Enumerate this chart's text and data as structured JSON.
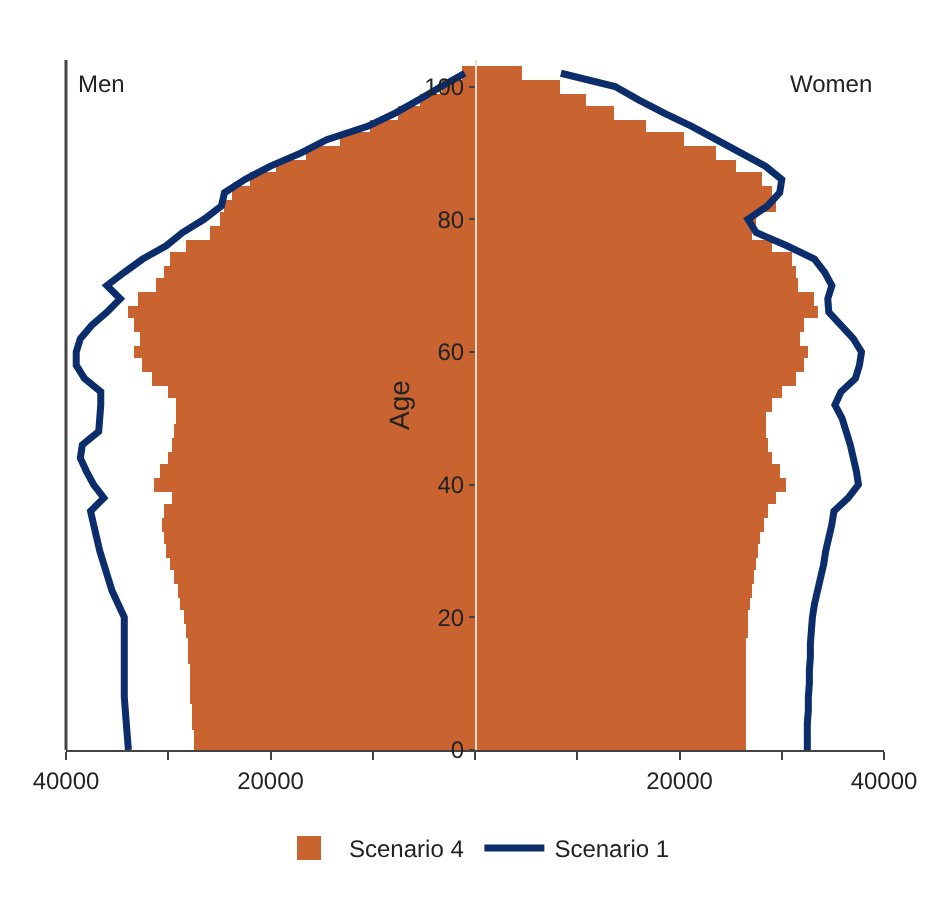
{
  "chart_data": {
    "type": "bar",
    "orientation": "horizontal",
    "stacked": true,
    "ylabel": "Age",
    "annotations": [
      "Men",
      "Women"
    ],
    "legend": "bottom",
    "x": [
      0,
      2,
      4,
      6,
      8,
      10,
      12,
      14,
      16,
      18,
      20,
      22,
      24,
      26,
      28,
      30,
      32,
      34,
      36,
      38,
      40,
      42,
      44,
      46,
      48,
      50,
      52,
      54,
      56,
      58,
      60,
      62,
      64,
      66,
      68,
      70,
      72,
      74,
      76,
      78,
      80,
      82,
      84,
      86,
      88,
      90,
      92,
      94,
      96,
      98,
      100,
      102
    ],
    "xlim": [
      -40000,
      40000
    ],
    "xticks": [
      {
        "value": -40000,
        "label": "40000"
      },
      {
        "value": -30000,
        "label": null
      },
      {
        "value": -20000,
        "label": "20000"
      },
      {
        "value": -10000,
        "label": null
      },
      {
        "value": 0,
        "label": null
      },
      {
        "value": 10000,
        "label": null
      },
      {
        "value": 20000,
        "label": "20000"
      },
      {
        "value": 30000,
        "label": null
      },
      {
        "value": 40000,
        "label": "40000"
      }
    ],
    "ylim": [
      0,
      104
    ],
    "yticks": [
      0,
      20,
      40,
      60,
      80,
      100
    ],
    "series": [
      {
        "name": "Scenario 4",
        "color": "#c96431",
        "values": [
          -27500,
          -27500,
          -27600,
          -27700,
          -27800,
          -27800,
          -27900,
          -28000,
          -28100,
          -28300,
          -28400,
          -28800,
          -29100,
          -29500,
          -29800,
          -30200,
          -30400,
          -30700,
          -30500,
          -29600,
          -31400,
          -30800,
          -30100,
          -29700,
          -29400,
          -29200,
          -29300,
          -30000,
          -31500,
          -32600,
          -33300,
          -32700,
          -33300,
          -33900,
          -33000,
          -31200,
          -30500,
          -29800,
          -28200,
          -26000,
          -24900,
          -24600,
          -23800,
          -22000,
          -19400,
          -16500,
          -13300,
          -10200,
          -7500,
          -5400,
          -3300,
          -1200
        ]
      },
      {
        "color": "#c96431",
        "values": [
          26500,
          26500,
          26500,
          26500,
          26500,
          26500,
          26600,
          26600,
          26600,
          26700,
          26700,
          26900,
          27100,
          27300,
          27500,
          27600,
          27900,
          28300,
          28600,
          29500,
          30400,
          29800,
          29100,
          28600,
          28400,
          28400,
          29000,
          30000,
          31400,
          32200,
          32500,
          31800,
          32200,
          33500,
          33200,
          31600,
          31400,
          31000,
          29000,
          27000,
          27400,
          29400,
          29000,
          28000,
          25500,
          23500,
          20500,
          16800,
          13600,
          10800,
          8400,
          4500
        ]
      },
      {
        "name": "Scenario 1",
        "type": "line",
        "color": "#0b2d6b",
        "values": [
          -33900,
          -34000,
          -34100,
          -34200,
          -34300,
          -34300,
          -34300,
          -34300,
          -34300,
          -34300,
          -34300,
          -34900,
          -35500,
          -35900,
          -36300,
          -36700,
          -37000,
          -37300,
          -37600,
          -36300,
          -37300,
          -38000,
          -38600,
          -38400,
          -36800,
          -36700,
          -36600,
          -36600,
          -38200,
          -39000,
          -39000,
          -38600,
          -37500,
          -36000,
          -34700,
          -36000,
          -34300,
          -32500,
          -30200,
          -28600,
          -26500,
          -24800,
          -24500,
          -22500,
          -20000,
          -17000,
          -14500,
          -10500,
          -7800,
          -5500,
          -3300,
          -1000
        ]
      },
      {
        "type": "line",
        "color": "#0b2d6b",
        "values": [
          32500,
          32500,
          32500,
          32600,
          32600,
          32700,
          32700,
          32800,
          32800,
          32900,
          33000,
          33200,
          33500,
          33800,
          34100,
          34300,
          34600,
          34900,
          35100,
          36500,
          37500,
          37300,
          37000,
          36700,
          36300,
          35900,
          35200,
          35800,
          37200,
          37600,
          37800,
          37000,
          35800,
          34600,
          34500,
          34900,
          34200,
          33200,
          30500,
          27500,
          26700,
          28600,
          29800,
          30000,
          28400,
          26000,
          23600,
          21200,
          18500,
          16000,
          13700,
          8400
        ]
      }
    ]
  }
}
